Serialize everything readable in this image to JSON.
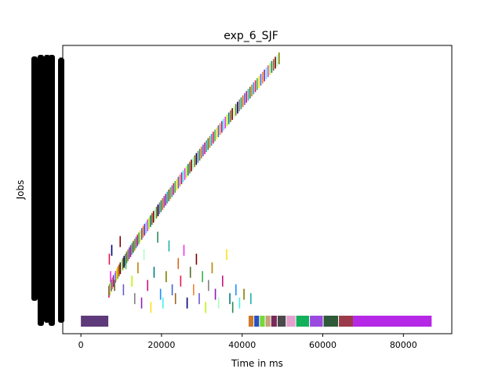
{
  "chart_data": {
    "type": "gantt",
    "title": "exp_6_SJF",
    "xlabel": "Time in ms",
    "ylabel": "Jobs",
    "xlim": [
      -4500,
      92000
    ],
    "x_ticks": [
      0,
      20000,
      40000,
      60000,
      80000
    ],
    "x_tick_labels": [
      "0",
      "20000",
      "40000",
      "60000",
      "80000"
    ],
    "y_tick_labels_note": "dense overlapping job labels rendered as solid black",
    "grid": false,
    "legend": "none",
    "main_diagonal": {
      "description": "staircase of short job bars rising from ~7000 ms to ~49000 ms",
      "start_time": 6800,
      "end_time": 49000,
      "segments": 110
    },
    "bottom_row_jobs": [
      {
        "start": 0,
        "end": 6800,
        "color": "#5e3a7a"
      },
      {
        "start": 41600,
        "end": 42800,
        "color": "#cc7a2e"
      },
      {
        "start": 43000,
        "end": 44200,
        "color": "#2a4fbf"
      },
      {
        "start": 44400,
        "end": 45600,
        "color": "#74d83a"
      },
      {
        "start": 45800,
        "end": 47000,
        "color": "#c8a07a"
      },
      {
        "start": 47200,
        "end": 48600,
        "color": "#7a2a5a"
      },
      {
        "start": 48800,
        "end": 50800,
        "color": "#4a4a4a"
      },
      {
        "start": 51000,
        "end": 53200,
        "color": "#e6a0d0"
      },
      {
        "start": 53400,
        "end": 56600,
        "color": "#12b05a"
      },
      {
        "start": 56800,
        "end": 60000,
        "color": "#9a4ae0"
      },
      {
        "start": 60200,
        "end": 63800,
        "color": "#2e5a3a"
      },
      {
        "start": 64000,
        "end": 67500,
        "color": "#9a3a4a"
      },
      {
        "start": 67500,
        "end": 87000,
        "color": "#b428e6"
      }
    ],
    "scattered_jobs": [
      {
        "t": 6900,
        "row": 12
      },
      {
        "t": 7200,
        "row": 8
      },
      {
        "t": 7500,
        "row": 14
      },
      {
        "t": 8200,
        "row": 6
      },
      {
        "t": 9000,
        "row": 9
      },
      {
        "t": 9600,
        "row": 16
      },
      {
        "t": 10400,
        "row": 5
      },
      {
        "t": 11000,
        "row": 11
      },
      {
        "t": 12500,
        "row": 7
      },
      {
        "t": 13200,
        "row": 3
      },
      {
        "t": 14000,
        "row": 10
      },
      {
        "t": 14900,
        "row": 2
      },
      {
        "t": 15500,
        "row": 13
      },
      {
        "t": 16400,
        "row": 6
      },
      {
        "t": 17200,
        "row": 1
      },
      {
        "t": 18000,
        "row": 9
      },
      {
        "t": 18900,
        "row": 17
      },
      {
        "t": 19600,
        "row": 4
      },
      {
        "t": 20200,
        "row": 2
      },
      {
        "t": 21000,
        "row": 8
      },
      {
        "t": 21700,
        "row": 15
      },
      {
        "t": 22500,
        "row": 5
      },
      {
        "t": 23300,
        "row": 3
      },
      {
        "t": 24000,
        "row": 11
      },
      {
        "t": 24600,
        "row": 7
      },
      {
        "t": 25400,
        "row": 14
      },
      {
        "t": 26200,
        "row": 2
      },
      {
        "t": 27000,
        "row": 9
      },
      {
        "t": 27800,
        "row": 5
      },
      {
        "t": 28500,
        "row": 12
      },
      {
        "t": 29200,
        "row": 3
      },
      {
        "t": 30000,
        "row": 8
      },
      {
        "t": 30800,
        "row": 1
      },
      {
        "t": 31500,
        "row": 6
      },
      {
        "t": 32400,
        "row": 10
      },
      {
        "t": 33200,
        "row": 4
      },
      {
        "t": 34000,
        "row": 2
      },
      {
        "t": 35000,
        "row": 7
      },
      {
        "t": 36000,
        "row": 13
      },
      {
        "t": 36800,
        "row": 3
      },
      {
        "t": 37500,
        "row": 1
      },
      {
        "t": 38300,
        "row": 5
      },
      {
        "t": 39200,
        "row": 2
      },
      {
        "t": 40300,
        "row": 4
      },
      {
        "t": 42000,
        "row": 3
      }
    ]
  }
}
